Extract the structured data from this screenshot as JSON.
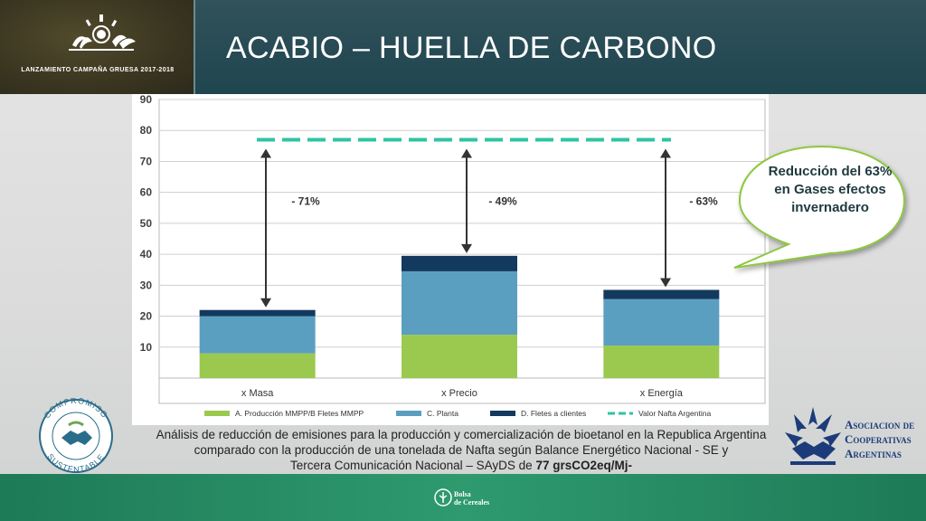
{
  "header": {
    "campaign_label": "LANZAMIENTO CAMPAÑA GRUESA 2017-2018",
    "title": "ACABIO – HUELLA DE CARBONO"
  },
  "colors": {
    "segment_a": "#9bc94f",
    "segment_c": "#5b9fc0",
    "segment_d": "#14395e",
    "reference": "#2ec4a2"
  },
  "chart_data": {
    "type": "bar",
    "stacked": true,
    "categories": [
      "x Masa",
      "x Precio",
      "x Energía"
    ],
    "series": [
      {
        "name": "A. Producción MMPP/B Fletes MMPP",
        "values": [
          8,
          14,
          10.5
        ]
      },
      {
        "name": "C. Planta",
        "values": [
          12,
          20.5,
          15
        ]
      },
      {
        "name": "D. Fletes a clientes",
        "values": [
          2,
          5,
          3
        ]
      }
    ],
    "reference_line": {
      "name": "Valor Nafta Argentina",
      "value": 77
    },
    "reductions": [
      "- 71%",
      "- 49%",
      "- 63%"
    ],
    "ylabel": "grsCO2eq/Mj",
    "xlabel": "",
    "ylim": [
      0,
      90
    ],
    "yticks": [
      10,
      20,
      30,
      40,
      50,
      60,
      70,
      80,
      90
    ],
    "grid": true,
    "legend_position": "bottom"
  },
  "callout": {
    "text": "Reducción del 63% en Gases efectos invernadero"
  },
  "description": {
    "line1": "Análisis de reducción de emisiones para la producción y comercialización de bioetanol en la Republica Argentina",
    "line2": "comparado con la producción de una tonelada de Nafta según Balance Energético Nacional - SE y",
    "line3": "Tercera Comunicación Nacional – SAyDS de",
    "line3_bold": "77 grsCO2eq/Mj-"
  },
  "logos": {
    "compromiso_top": "COMPROMISO",
    "compromiso_bottom": "SUSTENTABLE",
    "aca_line1": "Asociacion de",
    "aca_line2": "Cooperativas",
    "aca_line3": "Argentinas",
    "bolsa_line1": "Bolsa",
    "bolsa_line2": "de Cereales"
  },
  "icons": {
    "campaign": "plant-sun-icon",
    "compromiso": "handshake-icon",
    "aca": "handshake-icon",
    "bolsa": "grain-icon"
  }
}
